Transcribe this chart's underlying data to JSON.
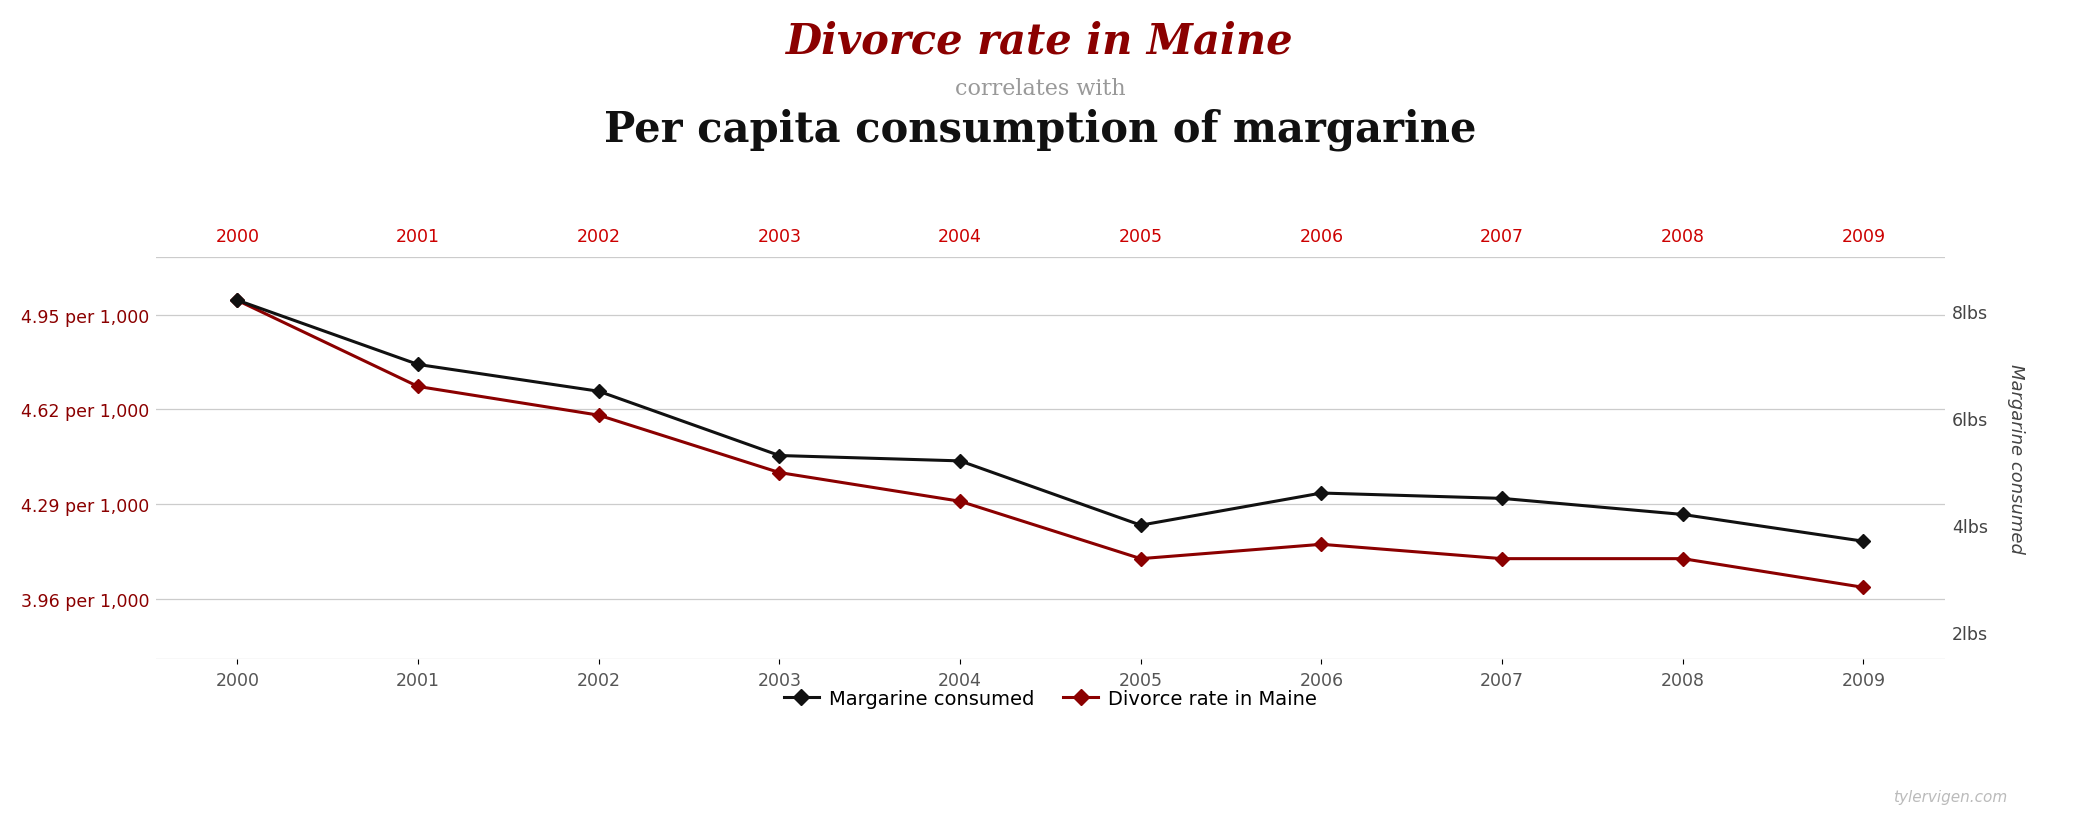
{
  "years": [
    2000,
    2001,
    2002,
    2003,
    2004,
    2005,
    2006,
    2007,
    2008,
    2009
  ],
  "margarine_lbs": [
    8.2,
    7.0,
    6.5,
    5.3,
    5.2,
    4.0,
    4.6,
    4.5,
    4.2,
    3.7
  ],
  "divorce_rate": [
    5.0,
    4.7,
    4.6,
    4.4,
    4.3,
    4.1,
    4.15,
    4.1,
    4.1,
    4.0
  ],
  "title_line1": "Divorce rate in Maine",
  "title_line2": "correlates with",
  "title_line3": "Per capita consumption of margarine",
  "title_color": "#8b0000",
  "subtitle_color": "#999999",
  "title3_color": "#111111",
  "left_ylabel": "Divorce rate in Maine",
  "right_ylabel": "Margarine consumed",
  "yticks_left_labels": [
    "3.96 per 1,000",
    "4.29 per 1,000",
    "4.62 per 1,000",
    "4.95 per 1,000"
  ],
  "yticks_left_vals": [
    3.96,
    4.29,
    4.62,
    4.95
  ],
  "yticks_right_labels": [
    "2lbs",
    "4lbs",
    "6lbs",
    "8lbs"
  ],
  "yticks_right_vals": [
    2,
    4,
    6,
    8
  ],
  "ylim_left": [
    3.75,
    5.15
  ],
  "ylim_right": [
    1.5,
    9.0
  ],
  "xlim": [
    1999.55,
    2009.45
  ],
  "line_color_margarine": "#111111",
  "line_color_divorce": "#8b0000",
  "background_color": "#ffffff",
  "grid_color": "#cccccc",
  "legend_label_margarine": "Margarine consumed",
  "legend_label_divorce": "Divorce rate in Maine",
  "watermark": "tylervigen.com",
  "top_axis_color": "#cc0000",
  "bottom_axis_color": "#555555",
  "left_tick_color": "#8b0000",
  "right_tick_color": "#444444"
}
